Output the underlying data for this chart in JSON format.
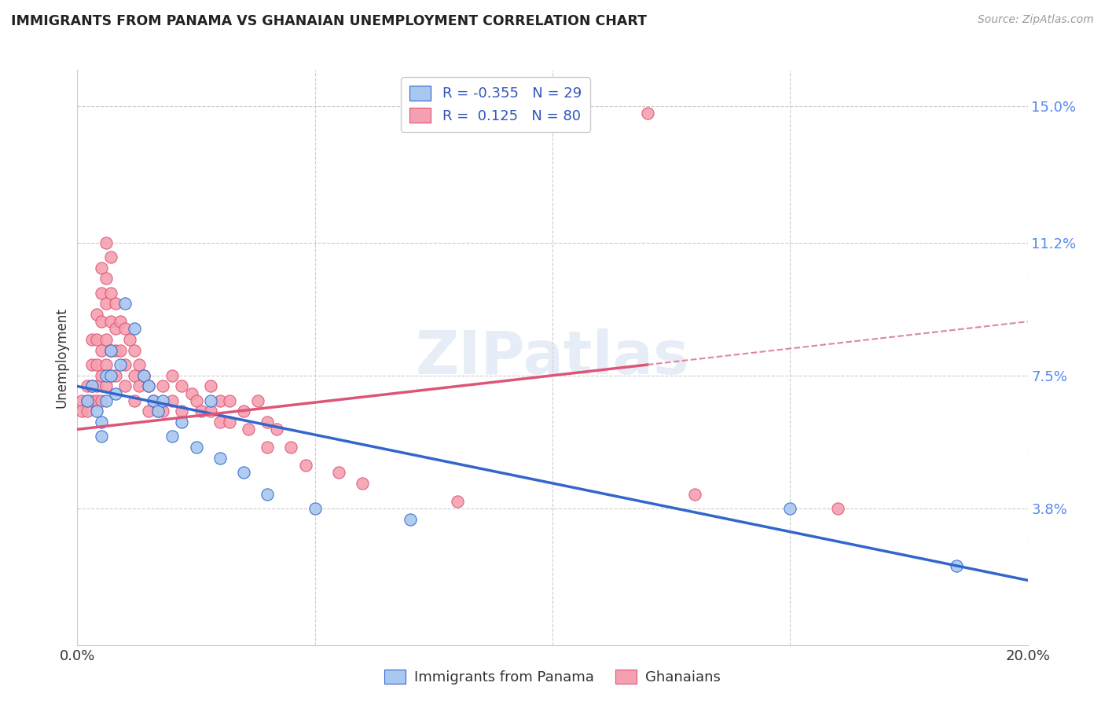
{
  "title": "IMMIGRANTS FROM PANAMA VS GHANAIAN UNEMPLOYMENT CORRELATION CHART",
  "source": "Source: ZipAtlas.com",
  "ylabel": "Unemployment",
  "xlim": [
    0.0,
    0.2
  ],
  "ylim": [
    0.0,
    0.16
  ],
  "yticks": [
    0.038,
    0.075,
    0.112,
    0.15
  ],
  "ytick_labels": [
    "3.8%",
    "7.5%",
    "11.2%",
    "15.0%"
  ],
  "xticks": [
    0.0,
    0.05,
    0.1,
    0.15,
    0.2
  ],
  "xtick_labels": [
    "0.0%",
    "",
    "",
    "",
    "20.0%"
  ],
  "color_blue": "#a8c8f0",
  "color_pink": "#f5a0b0",
  "line_blue": "#3366cc",
  "line_pink": "#dd5577",
  "line_dashed": "#dd8899",
  "R_blue": -0.355,
  "N_blue": 29,
  "R_pink": 0.125,
  "N_pink": 80,
  "watermark": "ZIPatlas",
  "blue_line_x": [
    0.0,
    0.2
  ],
  "blue_line_y": [
    0.072,
    0.018
  ],
  "pink_line_x": [
    0.0,
    0.12
  ],
  "pink_line_y": [
    0.06,
    0.078
  ],
  "dashed_line_x": [
    0.12,
    0.2
  ],
  "dashed_line_y": [
    0.078,
    0.09
  ],
  "blue_points": [
    [
      0.002,
      0.068
    ],
    [
      0.003,
      0.072
    ],
    [
      0.004,
      0.065
    ],
    [
      0.005,
      0.062
    ],
    [
      0.005,
      0.058
    ],
    [
      0.006,
      0.075
    ],
    [
      0.006,
      0.068
    ],
    [
      0.007,
      0.082
    ],
    [
      0.007,
      0.075
    ],
    [
      0.008,
      0.07
    ],
    [
      0.009,
      0.078
    ],
    [
      0.01,
      0.095
    ],
    [
      0.012,
      0.088
    ],
    [
      0.014,
      0.075
    ],
    [
      0.015,
      0.072
    ],
    [
      0.016,
      0.068
    ],
    [
      0.017,
      0.065
    ],
    [
      0.018,
      0.068
    ],
    [
      0.02,
      0.058
    ],
    [
      0.022,
      0.062
    ],
    [
      0.025,
      0.055
    ],
    [
      0.028,
      0.068
    ],
    [
      0.03,
      0.052
    ],
    [
      0.035,
      0.048
    ],
    [
      0.04,
      0.042
    ],
    [
      0.05,
      0.038
    ],
    [
      0.07,
      0.035
    ],
    [
      0.15,
      0.038
    ],
    [
      0.185,
      0.022
    ]
  ],
  "pink_points": [
    [
      0.001,
      0.068
    ],
    [
      0.001,
      0.065
    ],
    [
      0.002,
      0.072
    ],
    [
      0.002,
      0.068
    ],
    [
      0.002,
      0.065
    ],
    [
      0.003,
      0.085
    ],
    [
      0.003,
      0.078
    ],
    [
      0.003,
      0.072
    ],
    [
      0.003,
      0.068
    ],
    [
      0.004,
      0.092
    ],
    [
      0.004,
      0.085
    ],
    [
      0.004,
      0.078
    ],
    [
      0.004,
      0.072
    ],
    [
      0.004,
      0.068
    ],
    [
      0.005,
      0.105
    ],
    [
      0.005,
      0.098
    ],
    [
      0.005,
      0.09
    ],
    [
      0.005,
      0.082
    ],
    [
      0.005,
      0.075
    ],
    [
      0.005,
      0.068
    ],
    [
      0.006,
      0.112
    ],
    [
      0.006,
      0.102
    ],
    [
      0.006,
      0.095
    ],
    [
      0.006,
      0.085
    ],
    [
      0.006,
      0.078
    ],
    [
      0.006,
      0.072
    ],
    [
      0.007,
      0.108
    ],
    [
      0.007,
      0.098
    ],
    [
      0.007,
      0.09
    ],
    [
      0.007,
      0.082
    ],
    [
      0.007,
      0.075
    ],
    [
      0.008,
      0.095
    ],
    [
      0.008,
      0.088
    ],
    [
      0.008,
      0.082
    ],
    [
      0.008,
      0.075
    ],
    [
      0.009,
      0.09
    ],
    [
      0.009,
      0.082
    ],
    [
      0.01,
      0.088
    ],
    [
      0.01,
      0.078
    ],
    [
      0.01,
      0.072
    ],
    [
      0.011,
      0.085
    ],
    [
      0.012,
      0.082
    ],
    [
      0.012,
      0.075
    ],
    [
      0.012,
      0.068
    ],
    [
      0.013,
      0.078
    ],
    [
      0.013,
      0.072
    ],
    [
      0.014,
      0.075
    ],
    [
      0.015,
      0.072
    ],
    [
      0.015,
      0.065
    ],
    [
      0.016,
      0.068
    ],
    [
      0.017,
      0.065
    ],
    [
      0.018,
      0.072
    ],
    [
      0.018,
      0.065
    ],
    [
      0.02,
      0.075
    ],
    [
      0.02,
      0.068
    ],
    [
      0.022,
      0.072
    ],
    [
      0.022,
      0.065
    ],
    [
      0.024,
      0.07
    ],
    [
      0.025,
      0.068
    ],
    [
      0.026,
      0.065
    ],
    [
      0.028,
      0.072
    ],
    [
      0.028,
      0.065
    ],
    [
      0.03,
      0.068
    ],
    [
      0.03,
      0.062
    ],
    [
      0.032,
      0.068
    ],
    [
      0.032,
      0.062
    ],
    [
      0.035,
      0.065
    ],
    [
      0.036,
      0.06
    ],
    [
      0.038,
      0.068
    ],
    [
      0.04,
      0.062
    ],
    [
      0.04,
      0.055
    ],
    [
      0.042,
      0.06
    ],
    [
      0.045,
      0.055
    ],
    [
      0.048,
      0.05
    ],
    [
      0.055,
      0.048
    ],
    [
      0.06,
      0.045
    ],
    [
      0.08,
      0.04
    ],
    [
      0.12,
      0.148
    ],
    [
      0.13,
      0.042
    ],
    [
      0.16,
      0.038
    ]
  ]
}
